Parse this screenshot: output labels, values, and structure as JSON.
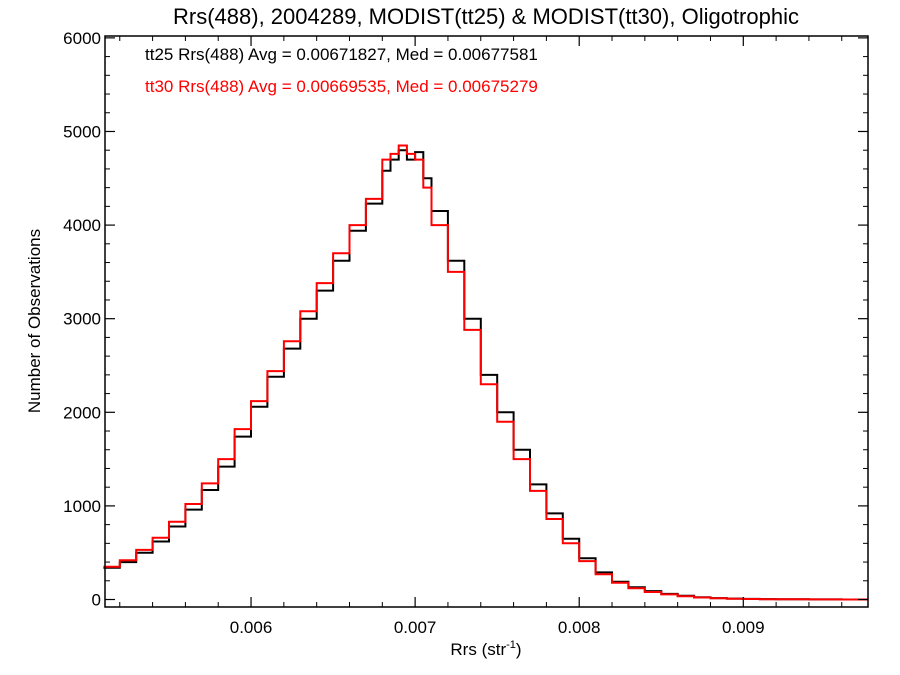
{
  "chart_data": {
    "type": "line",
    "title": "Rrs(488), 2004289, MODIST(tt25) & MODIST(tt30), Oligotrophic",
    "xlabel": "Rrs (str",
    "xlabel_sup": "-1",
    "xlabel_close": ")",
    "ylabel": "Number of Observations",
    "xlim": [
      0.00511,
      0.00976
    ],
    "ylim": [
      -80,
      6020
    ],
    "x_ticks": [
      0.006,
      0.007,
      0.008,
      0.009
    ],
    "x_tick_labels": [
      "0.006",
      "0.007",
      "0.008",
      "0.009"
    ],
    "y_ticks": [
      0,
      1000,
      2000,
      3000,
      4000,
      5000,
      6000
    ],
    "y_tick_labels": [
      "0",
      "1000",
      "2000",
      "3000",
      "4000",
      "5000",
      "6000"
    ],
    "grid": false,
    "legend_position": "top-left",
    "series": [
      {
        "name": "tt25",
        "label": "tt25 Rrs(488) Avg = 0.00671827, Med = 0.00677581",
        "color": "#000000",
        "step": "post",
        "x": [
          0.0051,
          0.0052,
          0.0053,
          0.0054,
          0.0055,
          0.0056,
          0.0057,
          0.0058,
          0.0059,
          0.006,
          0.0061,
          0.0062,
          0.0063,
          0.0064,
          0.0065,
          0.0066,
          0.0067,
          0.0068,
          0.00685,
          0.0069,
          0.00695,
          0.007,
          0.00705,
          0.0071,
          0.0072,
          0.0073,
          0.0074,
          0.0075,
          0.0076,
          0.0077,
          0.0078,
          0.0079,
          0.008,
          0.0081,
          0.0082,
          0.0083,
          0.0084,
          0.0085,
          0.0086,
          0.0087,
          0.0088,
          0.0089,
          0.009,
          0.0091,
          0.0092,
          0.0094,
          0.0096,
          0.00976
        ],
        "y": [
          340,
          400,
          500,
          620,
          780,
          960,
          1170,
          1420,
          1740,
          2060,
          2380,
          2680,
          3000,
          3300,
          3620,
          3940,
          4230,
          4580,
          4700,
          4800,
          4700,
          4780,
          4500,
          4150,
          3620,
          3000,
          2400,
          2000,
          1600,
          1230,
          920,
          650,
          440,
          290,
          190,
          130,
          90,
          60,
          40,
          25,
          15,
          10,
          6,
          4,
          2,
          1,
          0,
          0
        ]
      },
      {
        "name": "tt30",
        "label": "tt30 Rrs(488) Avg = 0.00669535, Med = 0.00675279",
        "color": "#ff0000",
        "step": "post",
        "x": [
          0.0051,
          0.0052,
          0.0053,
          0.0054,
          0.0055,
          0.0056,
          0.0057,
          0.0058,
          0.0059,
          0.006,
          0.0061,
          0.0062,
          0.0063,
          0.0064,
          0.0065,
          0.0066,
          0.0067,
          0.0068,
          0.00685,
          0.0069,
          0.00695,
          0.007,
          0.00705,
          0.0071,
          0.0072,
          0.0073,
          0.0074,
          0.0075,
          0.0076,
          0.0077,
          0.0078,
          0.0079,
          0.008,
          0.0081,
          0.0082,
          0.0083,
          0.0084,
          0.0085,
          0.0086,
          0.0087,
          0.0088,
          0.0089,
          0.009,
          0.0091,
          0.0092,
          0.0094,
          0.0096,
          0.00976
        ],
        "y": [
          350,
          420,
          530,
          660,
          830,
          1020,
          1240,
          1500,
          1820,
          2120,
          2440,
          2760,
          3080,
          3380,
          3700,
          4000,
          4280,
          4700,
          4760,
          4850,
          4760,
          4700,
          4400,
          4000,
          3500,
          2880,
          2300,
          1900,
          1500,
          1160,
          860,
          600,
          410,
          270,
          180,
          120,
          80,
          55,
          35,
          22,
          14,
          9,
          5,
          3,
          2,
          1,
          0,
          0
        ]
      }
    ]
  }
}
